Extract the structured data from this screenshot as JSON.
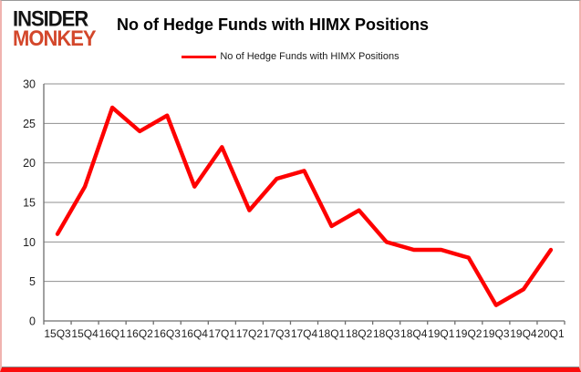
{
  "brand": {
    "line1": "INSIDER",
    "line2": "MONKEY"
  },
  "title": "No of Hedge Funds with HIMX Positions",
  "legend": {
    "label": "No of Hedge Funds with HIMX Positions"
  },
  "colors": {
    "line_red": "#fe0000",
    "brand_red": "#d3472b",
    "gridline_gray": "#8f8f8f",
    "axis_gray": "#6e6e6e",
    "label_color": "#1f1f1f",
    "frame_pink": "#f0b3af",
    "frame_bottom_red": "#fb0d0d"
  },
  "chart_data": {
    "type": "line",
    "title": "No of Hedge Funds with HIMX Positions",
    "categories": [
      "15Q3",
      "15Q4",
      "16Q1",
      "16Q2",
      "16Q3",
      "16Q4",
      "17Q1",
      "17Q2",
      "17Q3",
      "17Q4",
      "18Q1",
      "18Q2",
      "18Q3",
      "18Q4",
      "19Q1",
      "19Q2",
      "19Q3",
      "19Q4",
      "20Q1"
    ],
    "series": [
      {
        "name": "No of Hedge Funds with HIMX Positions",
        "values": [
          11,
          17,
          27,
          24,
          26,
          17,
          22,
          14,
          18,
          19,
          12,
          14,
          10,
          9,
          9,
          8,
          2,
          4,
          9
        ]
      }
    ],
    "xlabel": "",
    "ylabel": "",
    "ylim": [
      0,
      30
    ],
    "yticks": [
      0,
      5,
      10,
      15,
      20,
      25,
      30
    ],
    "grid": true,
    "legend_position": "top-center"
  }
}
